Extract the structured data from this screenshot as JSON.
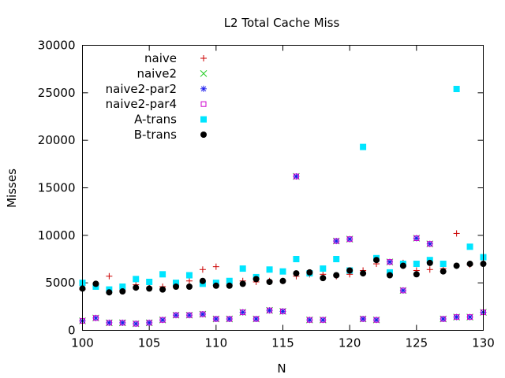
{
  "chart_data": {
    "type": "scatter",
    "title": "L2 Total Cache Miss",
    "xlabel": "N",
    "ylabel": "Misses",
    "xlim": [
      100,
      130
    ],
    "ylim": [
      0,
      30000
    ],
    "xticks": [
      100,
      105,
      110,
      115,
      120,
      125,
      130
    ],
    "yticks": [
      0,
      5000,
      10000,
      15000,
      20000,
      25000,
      30000
    ],
    "grid": false,
    "legend_position": "top-left",
    "x": [
      100,
      101,
      102,
      103,
      104,
      105,
      106,
      107,
      108,
      109,
      110,
      111,
      112,
      113,
      114,
      115,
      116,
      117,
      118,
      119,
      120,
      121,
      122,
      123,
      124,
      125,
      126,
      127,
      128,
      129,
      130
    ],
    "series": [
      {
        "name": "naive",
        "marker": "plus",
        "color": "#cc0000",
        "values": [
          4300,
          4600,
          5700,
          4200,
          4800,
          4500,
          4600,
          4700,
          5200,
          6400,
          6700,
          4900,
          5200,
          5100,
          5200,
          5200,
          5700,
          5900,
          5900,
          5700,
          5900,
          6300,
          7000,
          5900,
          7100,
          6300,
          6400,
          6500,
          10200,
          6900,
          7600
        ]
      },
      {
        "name": "naive2",
        "marker": "x",
        "color": "#22cc22",
        "values": [
          1000,
          1300,
          800,
          800,
          700,
          800,
          1100,
          1600,
          1600,
          1700,
          1200,
          1200,
          1900,
          1200,
          2100,
          2000,
          16200,
          1100,
          1100,
          9400,
          9600,
          1200,
          1100,
          7200,
          4200,
          9700,
          9100,
          1200,
          1400,
          1400,
          1900
        ]
      },
      {
        "name": "naive2-par2",
        "marker": "asterisk",
        "color": "#1a1aee",
        "values": [
          1000,
          1300,
          800,
          800,
          700,
          800,
          1100,
          1600,
          1600,
          1700,
          1200,
          1200,
          1900,
          1200,
          2100,
          2000,
          16200,
          1100,
          1100,
          9400,
          9600,
          1200,
          1100,
          7200,
          4200,
          9700,
          9100,
          1200,
          1400,
          1400,
          1900
        ]
      },
      {
        "name": "naive2-par4",
        "marker": "square-open",
        "color": "#cc00cc",
        "values": [
          1000,
          1300,
          800,
          800,
          700,
          800,
          1100,
          1600,
          1600,
          1700,
          1200,
          1200,
          1900,
          1200,
          2100,
          2000,
          16200,
          1100,
          1100,
          9400,
          9600,
          1200,
          1100,
          7200,
          4200,
          9700,
          9100,
          1200,
          1400,
          1400,
          1900
        ]
      },
      {
        "name": "A-trans",
        "marker": "square-filled",
        "color": "#00e5ff",
        "values": [
          5000,
          4600,
          4300,
          4600,
          5400,
          5100,
          5900,
          5000,
          5800,
          4900,
          5000,
          5200,
          6500,
          5600,
          6400,
          6200,
          7500,
          6000,
          6500,
          7500,
          6300,
          19300,
          7600,
          6100,
          7000,
          7000,
          7400,
          7000,
          25400,
          8800,
          7700
        ]
      },
      {
        "name": "B-trans",
        "marker": "circle-filled",
        "color": "#000000",
        "values": [
          4400,
          4900,
          4000,
          4100,
          4500,
          4400,
          4300,
          4600,
          4600,
          5200,
          4700,
          4700,
          4900,
          5400,
          5100,
          5200,
          6000,
          6100,
          5500,
          5800,
          6300,
          6000,
          7400,
          5800,
          6800,
          5900,
          7100,
          6200,
          6800,
          7000,
          7000
        ]
      }
    ]
  }
}
